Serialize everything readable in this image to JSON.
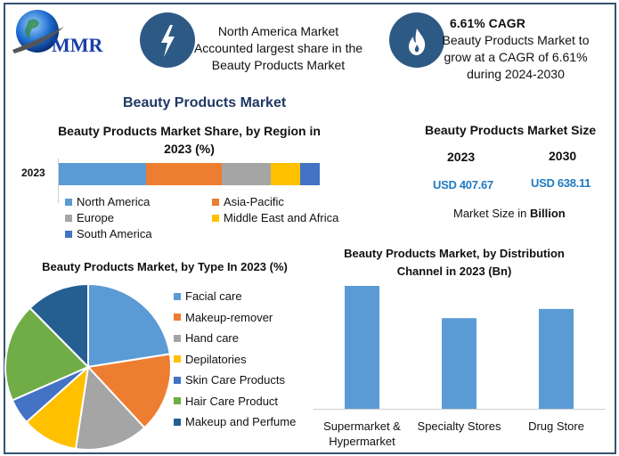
{
  "logo": {
    "text": "MMR"
  },
  "header": {
    "card1": {
      "icon": "lightning-icon",
      "lines": [
        "North America Market",
        "Accounted largest share in the",
        "Beauty Products Market"
      ]
    },
    "card2": {
      "icon": "flame-icon",
      "title": "6.61% CAGR",
      "lines": [
        "Beauty Products Market to",
        "grow at a CAGR of 6.61%",
        "during 2024-2030"
      ]
    }
  },
  "main_title": "Beauty Products Market",
  "market_size": {
    "title": "Beauty Products Market Size",
    "years": [
      "2023",
      "2030"
    ],
    "values": [
      "USD 407.67",
      "USD 638.11"
    ],
    "note_prefix": "Market Size in ",
    "note_bold": "Billion"
  },
  "colors": {
    "accent": "#2d5a85",
    "title": "#1f3864",
    "value": "#1f7bc1",
    "frame": "#34536f"
  },
  "chart_data": [
    {
      "type": "bar",
      "orientation": "horizontal-stacked",
      "title": "Beauty Products Market Share, by Region in 2023 (%)",
      "categories": [
        "2023"
      ],
      "xlim": [
        0,
        100
      ],
      "legend_position": "bottom",
      "series": [
        {
          "name": "North America",
          "values": [
            33.4
          ],
          "color": "#5b9bd5"
        },
        {
          "name": "Asia-Pacific",
          "values": [
            29.0
          ],
          "color": "#ed7d31"
        },
        {
          "name": "Europe",
          "values": [
            18.8
          ],
          "color": "#a5a5a5"
        },
        {
          "name": "Middle East and Africa",
          "values": [
            11.3
          ],
          "color": "#ffc000"
        },
        {
          "name": "South America",
          "values": [
            7.5
          ],
          "color": "#4472c4"
        }
      ]
    },
    {
      "type": "pie",
      "title": "Beauty Products Market, by Type In 2023 (%)",
      "legend_position": "right",
      "categories": [
        "Facial care",
        "Makeup-remover",
        "Hand care",
        "Depilatories",
        "Skin Care Products",
        "Hair Care Product",
        "Makeup and Perfume"
      ],
      "values": [
        22.5,
        15.6,
        14.3,
        11.0,
        5.0,
        19.2,
        12.4
      ],
      "colors": [
        "#5b9bd5",
        "#ed7d31",
        "#a5a5a5",
        "#ffc000",
        "#4472c4",
        "#70ad47",
        "#255e91"
      ]
    },
    {
      "type": "bar",
      "title": "Beauty Products Market, by Distribution Channel in 2023 (Bn)",
      "categories": [
        "Supermarket & Hypermarket",
        "Specialty Stores",
        "Drug Store"
      ],
      "category_lines": [
        [
          "Supermarket &",
          "Hypermarket"
        ],
        [
          "Specialty Stores"
        ],
        [
          "Drug Store"
        ]
      ],
      "values": [
        160,
        118,
        130
      ],
      "color": "#5b9bd5",
      "grid": false
    }
  ]
}
